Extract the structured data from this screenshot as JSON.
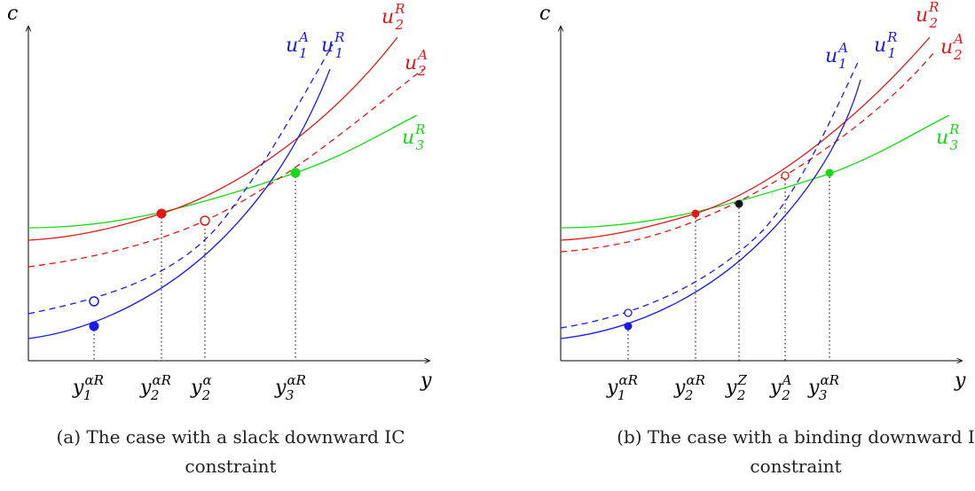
{
  "colors": {
    "blue": "#1a1ae6",
    "red": "#e01818",
    "green": "#16d916",
    "black": "#111111"
  },
  "panel_a": {
    "axis_y": "c",
    "axis_x": "y",
    "curves": [
      {
        "id": "u1A",
        "sym": "u",
        "sub": "1",
        "sup": "A",
        "color": "blue",
        "dash": true
      },
      {
        "id": "u1R",
        "sym": "u",
        "sub": "1",
        "sup": "R",
        "color": "blue",
        "dash": false
      },
      {
        "id": "u2R",
        "sym": "u",
        "sub": "2",
        "sup": "R",
        "color": "red",
        "dash": false
      },
      {
        "id": "u2A",
        "sym": "u",
        "sub": "2",
        "sup": "A",
        "color": "red",
        "dash": true
      },
      {
        "id": "u3R",
        "sym": "u",
        "sub": "3",
        "sup": "R",
        "color": "green",
        "dash": false
      }
    ],
    "ticks": [
      {
        "sym": "y",
        "sub": "1",
        "sup": "αR"
      },
      {
        "sym": "y",
        "sub": "2",
        "sup": "αR"
      },
      {
        "sym": "y",
        "sub": "2",
        "sup": "α"
      },
      {
        "sym": "y",
        "sub": "3",
        "sup": "αR"
      }
    ],
    "caption": [
      "(a) The case with a slack downward IC",
      "constraint"
    ]
  },
  "panel_b": {
    "axis_y": "c",
    "axis_x": "y",
    "curves": [
      {
        "id": "u1A",
        "sym": "u",
        "sub": "1",
        "sup": "A",
        "color": "blue",
        "dash": true
      },
      {
        "id": "u1R",
        "sym": "u",
        "sub": "1",
        "sup": "R",
        "color": "blue",
        "dash": false
      },
      {
        "id": "u2R",
        "sym": "u",
        "sub": "2",
        "sup": "R",
        "color": "red",
        "dash": false
      },
      {
        "id": "u2A",
        "sym": "u",
        "sub": "2",
        "sup": "A",
        "color": "red",
        "dash": true
      },
      {
        "id": "u3R",
        "sym": "u",
        "sub": "3",
        "sup": "R",
        "color": "green",
        "dash": false
      }
    ],
    "ticks": [
      {
        "sym": "y",
        "sub": "1",
        "sup": "αR"
      },
      {
        "sym": "y",
        "sub": "2",
        "sup": "αR"
      },
      {
        "sym": "y",
        "sub": "2",
        "sup": "Z"
      },
      {
        "sym": "y",
        "sub": "2",
        "sup": "A"
      },
      {
        "sym": "y",
        "sub": "3",
        "sup": "αR"
      }
    ],
    "caption": [
      "(b) The case with a binding downward I",
      "constraint"
    ]
  }
}
